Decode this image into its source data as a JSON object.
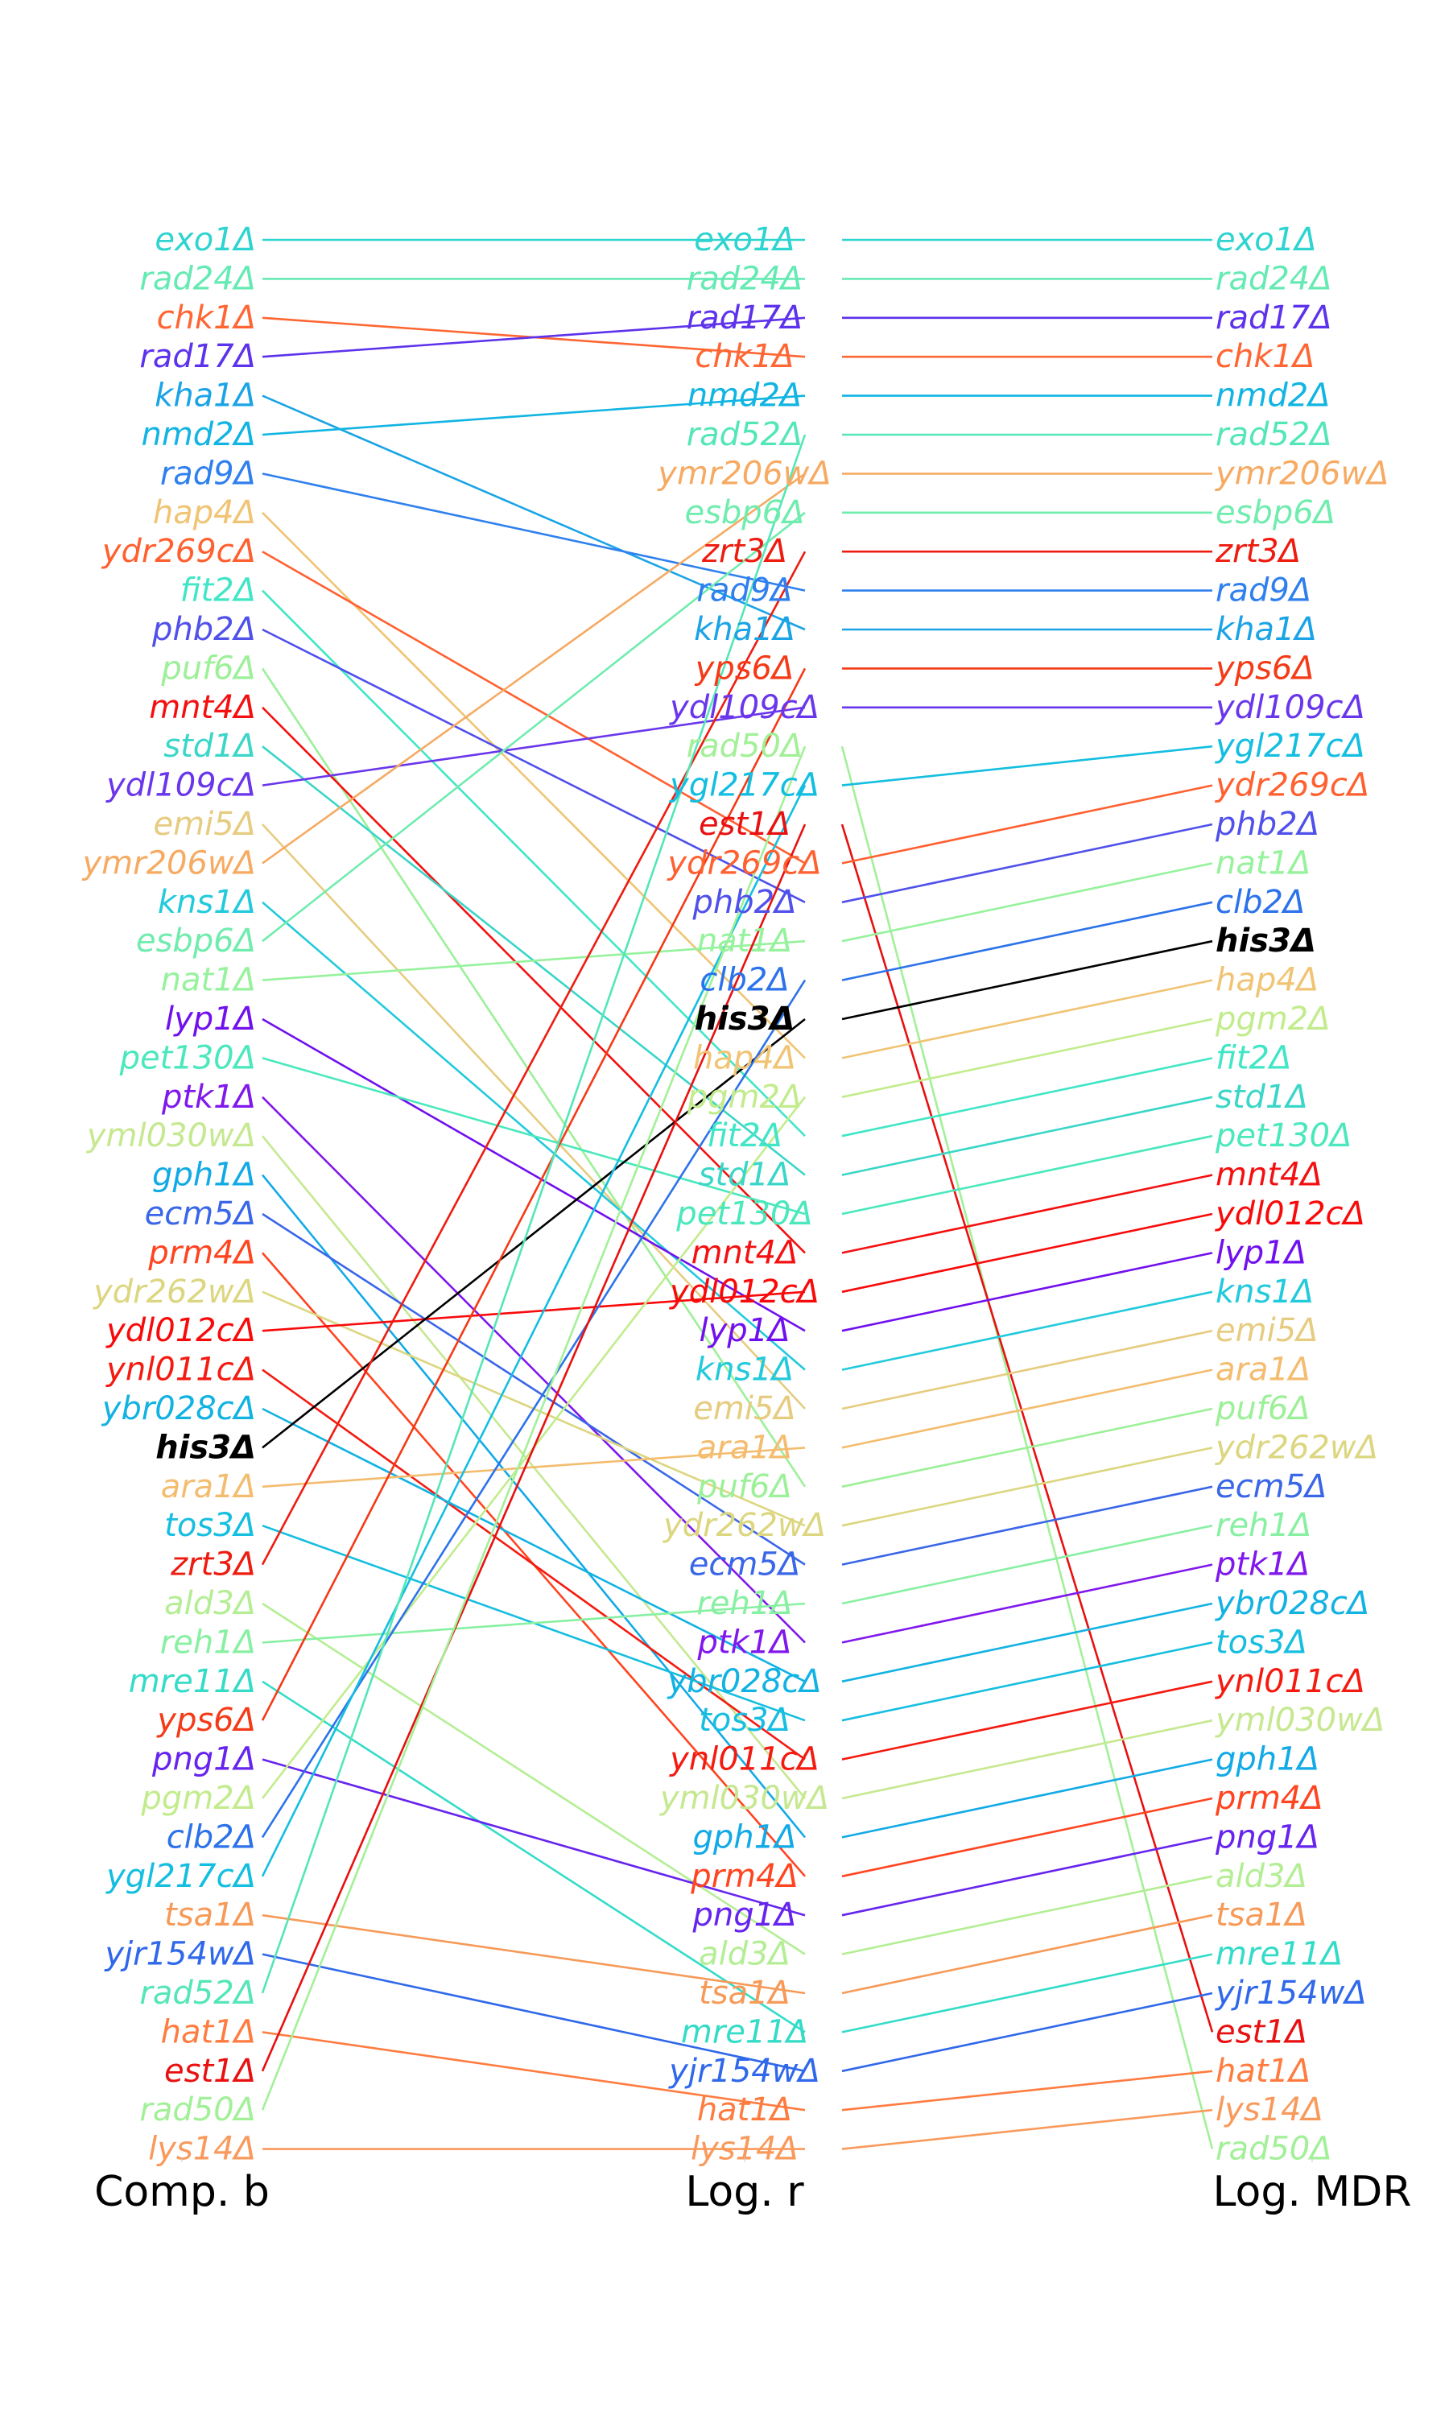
{
  "chart_data": {
    "type": "slope",
    "title": "",
    "suffix": "Δ",
    "highlight": "his3",
    "axes": [
      "Comp. b",
      "Log. r",
      "Log. MDR"
    ],
    "columns": [
      [
        "exo1",
        "rad24",
        "chk1",
        "rad17",
        "kha1",
        "nmd2",
        "rad9",
        "hap4",
        "ydr269c",
        "fit2",
        "phb2",
        "puf6",
        "mnt4",
        "std1",
        "ydl109c",
        "emi5",
        "ymr206w",
        "kns1",
        "esbp6",
        "nat1",
        "lyp1",
        "pet130",
        "ptk1",
        "yml030w",
        "gph1",
        "ecm5",
        "prm4",
        "ydr262w",
        "ydl012c",
        "ynl011c",
        "ybr028c",
        "his3",
        "ara1",
        "tos3",
        "zrt3",
        "ald3",
        "reh1",
        "mre11",
        "yps6",
        "png1",
        "pgm2",
        "clb2",
        "ygl217c",
        "tsa1",
        "yjr154w",
        "rad52",
        "hat1",
        "est1",
        "rad50",
        "lys14"
      ],
      [
        "exo1",
        "rad24",
        "rad17",
        "chk1",
        "nmd2",
        "rad52",
        "ymr206w",
        "esbp6",
        "zrt3",
        "rad9",
        "kha1",
        "yps6",
        "ydl109c",
        "rad50",
        "ygl217c",
        "est1",
        "ydr269c",
        "phb2",
        "nat1",
        "clb2",
        "his3",
        "hap4",
        "pgm2",
        "fit2",
        "std1",
        "pet130",
        "mnt4",
        "ydl012c",
        "lyp1",
        "kns1",
        "emi5",
        "ara1",
        "puf6",
        "ydr262w",
        "ecm5",
        "reh1",
        "ptk1",
        "ybr028c",
        "tos3",
        "ynl011c",
        "yml030w",
        "gph1",
        "prm4",
        "png1",
        "ald3",
        "tsa1",
        "mre11",
        "yjr154w",
        "hat1",
        "lys14"
      ],
      [
        "exo1",
        "rad24",
        "rad17",
        "chk1",
        "nmd2",
        "rad52",
        "ymr206w",
        "esbp6",
        "zrt3",
        "rad9",
        "kha1",
        "yps6",
        "ydl109c",
        "ygl217c",
        "ydr269c",
        "phb2",
        "nat1",
        "clb2",
        "his3",
        "hap4",
        "pgm2",
        "fit2",
        "std1",
        "pet130",
        "mnt4",
        "ydl012c",
        "lyp1",
        "kns1",
        "emi5",
        "ara1",
        "puf6",
        "ydr262w",
        "ecm5",
        "reh1",
        "ptk1",
        "ybr028c",
        "tos3",
        "ynl011c",
        "yml030w",
        "gph1",
        "prm4",
        "png1",
        "ald3",
        "tsa1",
        "mre11",
        "yjr154w",
        "est1",
        "hat1",
        "lys14",
        "rad50"
      ]
    ],
    "colors": {
      "exo1": "#2ed4d0",
      "rad24": "#66eab4",
      "chk1": "#ff6633",
      "rad17": "#5d32ec",
      "kha1": "#1aa4e6",
      "nmd2": "#11b4e2",
      "rad9": "#2f80ee",
      "hap4": "#f0c474",
      "ydr269c": "#ff6030",
      "fit2": "#40e6c6",
      "phb2": "#5050ea",
      "puf6": "#9cf098",
      "mnt4": "#f41010",
      "std1": "#3ad6c8",
      "ydl109c": "#6a36ec",
      "emi5": "#e6cc80",
      "ymr206w": "#f6aa62",
      "kns1": "#22cadc",
      "esbp6": "#70ecae",
      "nat1": "#96f29c",
      "lyp1": "#7010ee",
      "pet130": "#4ae8bc",
      "ptk1": "#8018ec",
      "yml030w": "#c6e890",
      "gph1": "#12aae6",
      "ecm5": "#3a66e8",
      "prm4": "#ff4420",
      "ydr262w": "#dcd680",
      "ydl012c": "#f80a0a",
      "ynl011c": "#f41a10",
      "ybr028c": "#12b2e2",
      "his3": "#000000",
      "ara1": "#f4bc6e",
      "tos3": "#16bee0",
      "zrt3": "#ee1c10",
      "ald3": "#b4ee94",
      "reh1": "#88f0a2",
      "mre11": "#34dcc8",
      "yps6": "#f43a16",
      "png1": "#6624ee",
      "pgm2": "#c2ec8c",
      "clb2": "#2c72ea",
      "ygl217c": "#14bee0",
      "tsa1": "#f69a58",
      "yjr154w": "#3068ea",
      "rad52": "#54e6b8",
      "hat1": "#ff7c40",
      "est1": "#e81010",
      "rad50": "#a2f098",
      "lys14": "#f99a5c"
    }
  }
}
